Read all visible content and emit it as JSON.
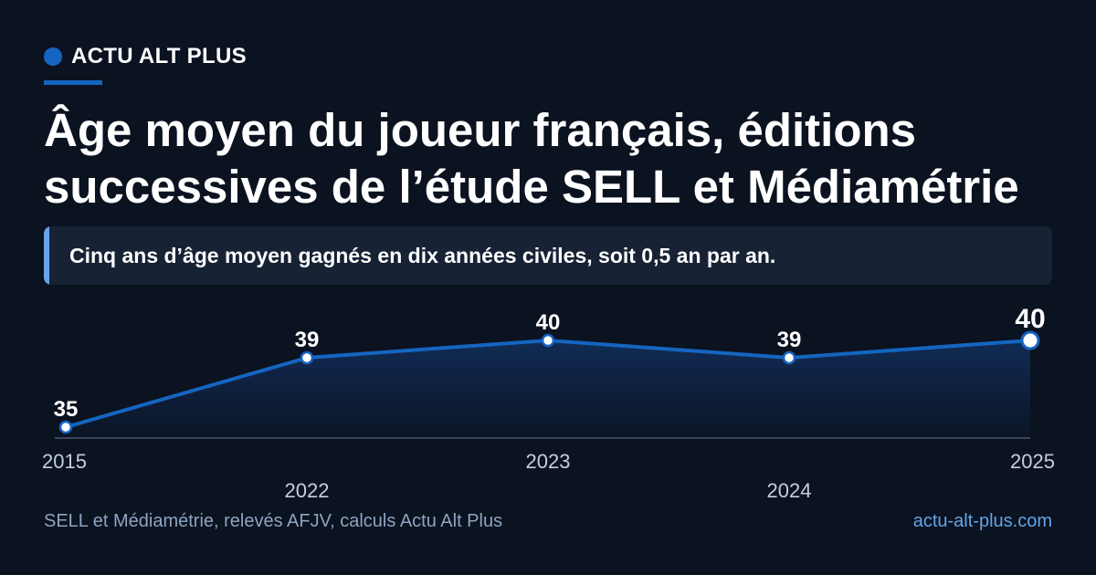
{
  "brand": {
    "name": "ACTU ALT PLUS"
  },
  "title": "Âge moyen du joueur français, éditions successives de l’étude SELL et Médiamétrie",
  "callout": "Cinq ans d’âge moyen gagnés en dix années civiles, soit 0,5 an par an.",
  "chart_data": {
    "type": "line",
    "categories": [
      "2015",
      "2022",
      "2023",
      "2024",
      "2025"
    ],
    "values": [
      35,
      39,
      40,
      39,
      40
    ],
    "data_labels": [
      "35",
      "39",
      "40",
      "39",
      "40"
    ],
    "highlight_last": true,
    "title": "",
    "xlabel": "",
    "ylabel": "",
    "grid": false,
    "legend": "none",
    "colors": {
      "line": "#1565c0",
      "area_top": "#12305e",
      "marker_fill": "#ffffff",
      "axis": "#3a4658"
    }
  },
  "footer": {
    "source": "SELL et Médiamétrie, relevés AFJV, calculs Actu Alt Plus",
    "site": "actu-alt-plus.com"
  }
}
